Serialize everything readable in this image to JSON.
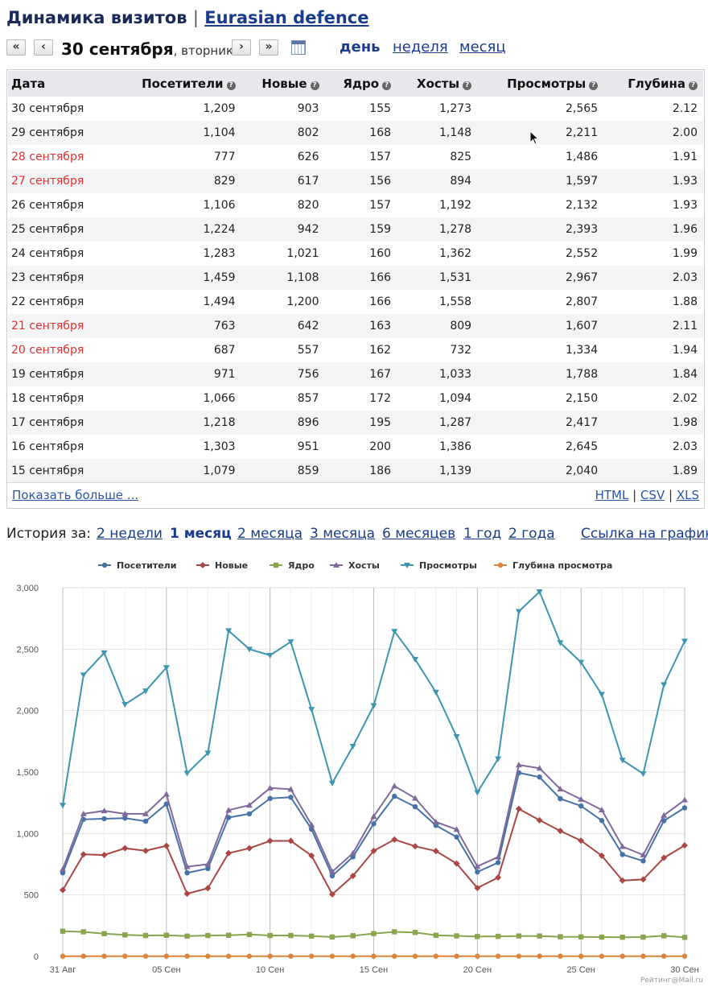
{
  "header": {
    "title": "Динамика визитов",
    "separator": "|",
    "site_link": "Eurasian defence"
  },
  "nav": {
    "first": "«",
    "prev": "‹",
    "next": "›",
    "last": "»",
    "date": "30 сентября",
    "weekday": ", вторник",
    "periods": {
      "day": "день",
      "week": "неделя",
      "month": "месяц"
    }
  },
  "table": {
    "columns": [
      "Дата",
      "Посетители",
      "Новые",
      "Ядро",
      "Хосты",
      "Просмотры",
      "Глубина"
    ],
    "help_glyph": "?",
    "rows": [
      [
        "30 сентября",
        "1,209",
        "903",
        "155",
        "1,273",
        "2,565",
        "2.12"
      ],
      [
        "29 сентября",
        "1,104",
        "802",
        "168",
        "1,148",
        "2,211",
        "2.00"
      ],
      [
        "28 сентября",
        "777",
        "626",
        "157",
        "825",
        "1,486",
        "1.91"
      ],
      [
        "27 сентября",
        "829",
        "617",
        "156",
        "894",
        "1,597",
        "1.93"
      ],
      [
        "26 сентября",
        "1,106",
        "820",
        "157",
        "1,192",
        "2,132",
        "1.93"
      ],
      [
        "25 сентября",
        "1,224",
        "942",
        "159",
        "1,278",
        "2,393",
        "1.96"
      ],
      [
        "24 сентября",
        "1,283",
        "1,021",
        "160",
        "1,362",
        "2,552",
        "1.99"
      ],
      [
        "23 сентября",
        "1,459",
        "1,108",
        "166",
        "1,531",
        "2,967",
        "2.03"
      ],
      [
        "22 сентября",
        "1,494",
        "1,200",
        "166",
        "1,558",
        "2,807",
        "1.88"
      ],
      [
        "21 сентября",
        "763",
        "642",
        "163",
        "809",
        "1,607",
        "2.11"
      ],
      [
        "20 сентября",
        "687",
        "557",
        "162",
        "732",
        "1,334",
        "1.94"
      ],
      [
        "19 сентября",
        "971",
        "756",
        "167",
        "1,033",
        "1,788",
        "1.84"
      ],
      [
        "18 сентября",
        "1,066",
        "857",
        "172",
        "1,094",
        "2,150",
        "2.02"
      ],
      [
        "17 сентября",
        "1,218",
        "896",
        "195",
        "1,287",
        "2,417",
        "1.98"
      ],
      [
        "16 сентября",
        "1,303",
        "951",
        "200",
        "1,386",
        "2,645",
        "2.03"
      ],
      [
        "15 сентября",
        "1,079",
        "859",
        "186",
        "1,139",
        "2,040",
        "1.89"
      ]
    ],
    "weekend_color": "#e03030",
    "weekend_rows": [
      2,
      3,
      9,
      10
    ],
    "show_more": "Показать больше ...",
    "exports": [
      "HTML",
      "CSV",
      "XLS"
    ],
    "export_sep": "|"
  },
  "history": {
    "label": "История за:",
    "options": [
      "2 недели",
      "1 месяц",
      "2 месяца",
      "3 месяца",
      "6 месяцев",
      "1 год",
      "2 года"
    ],
    "active": "1 месяц",
    "chart_link": "Ссылка на график"
  },
  "chart_data": {
    "type": "line",
    "categories": [
      "31 Авг",
      "01 Сен",
      "02 Сен",
      "03 Сен",
      "04 Сен",
      "05 Сен",
      "06 Сен",
      "07 Сен",
      "08 Сен",
      "09 Сен",
      "10 Сен",
      "11 Сен",
      "12 Сен",
      "13 Сен",
      "14 Сен",
      "15 Сен",
      "16 Сен",
      "17 Сен",
      "18 Сен",
      "19 Сен",
      "20 Сен",
      "21 Сен",
      "22 Сен",
      "23 Сен",
      "24 Сен",
      "25 Сен",
      "26 Сен",
      "27 Сен",
      "28 Сен",
      "29 Сен",
      "30 Сен"
    ],
    "tick_labels": [
      "31 Авг",
      "05 Сен",
      "10 Сен",
      "15 Сен",
      "20 Сен",
      "25 Сен",
      "30 Сен"
    ],
    "ylim": [
      0,
      3000
    ],
    "yticks": [
      "0",
      "500",
      "1,000",
      "1,500",
      "2,000",
      "2,500",
      "3,000"
    ],
    "legend_position": "top",
    "grid": true,
    "series": [
      {
        "name": "Посетители",
        "color": "#4572a7",
        "marker": "circle",
        "values": [
          680,
          1115,
          1120,
          1125,
          1100,
          1240,
          680,
          715,
          1130,
          1160,
          1285,
          1295,
          1035,
          655,
          810,
          1079,
          1303,
          1218,
          1066,
          971,
          687,
          763,
          1494,
          1459,
          1283,
          1224,
          1106,
          829,
          777,
          1104,
          1209
        ]
      },
      {
        "name": "Новые",
        "color": "#aa4643",
        "marker": "diamond",
        "values": [
          540,
          830,
          825,
          880,
          860,
          900,
          510,
          555,
          840,
          880,
          940,
          940,
          820,
          505,
          655,
          859,
          951,
          896,
          857,
          756,
          557,
          642,
          1200,
          1108,
          1021,
          942,
          820,
          617,
          626,
          802,
          903
        ]
      },
      {
        "name": "Ядро",
        "color": "#89a54e",
        "marker": "square",
        "values": [
          205,
          200,
          185,
          175,
          170,
          172,
          165,
          170,
          172,
          178,
          170,
          170,
          165,
          158,
          168,
          186,
          200,
          195,
          172,
          167,
          162,
          163,
          166,
          166,
          160,
          159,
          157,
          156,
          157,
          168,
          155
        ]
      },
      {
        "name": "Хосты",
        "color": "#80699b",
        "marker": "triangle",
        "values": [
          710,
          1160,
          1185,
          1160,
          1160,
          1320,
          730,
          750,
          1190,
          1230,
          1370,
          1360,
          1070,
          690,
          840,
          1139,
          1386,
          1287,
          1094,
          1033,
          732,
          809,
          1558,
          1531,
          1362,
          1278,
          1192,
          894,
          825,
          1148,
          1273
        ]
      },
      {
        "name": "Просмотры",
        "color": "#3d96ae",
        "marker": "triangle-down",
        "values": [
          1230,
          2290,
          2470,
          2050,
          2160,
          2350,
          1490,
          1655,
          2650,
          2500,
          2450,
          2560,
          2010,
          1410,
          1710,
          2040,
          2645,
          2417,
          2150,
          1788,
          1334,
          1607,
          2807,
          2967,
          2552,
          2393,
          2132,
          1597,
          1486,
          2211,
          2565
        ]
      },
      {
        "name": "Глубина просмотра",
        "color": "#db843d",
        "marker": "circle",
        "values": [
          1.9,
          2.1,
          2.0,
          2.0,
          1.95,
          2.0,
          1.9,
          1.95,
          2.0,
          2.0,
          2.05,
          2.0,
          1.95,
          1.9,
          1.95,
          1.89,
          2.03,
          1.98,
          2.02,
          1.84,
          1.94,
          2.11,
          1.88,
          2.03,
          1.99,
          1.96,
          1.93,
          1.93,
          1.91,
          2.0,
          2.12
        ]
      }
    ],
    "credit": "Рейтинг@Mail.ru"
  }
}
